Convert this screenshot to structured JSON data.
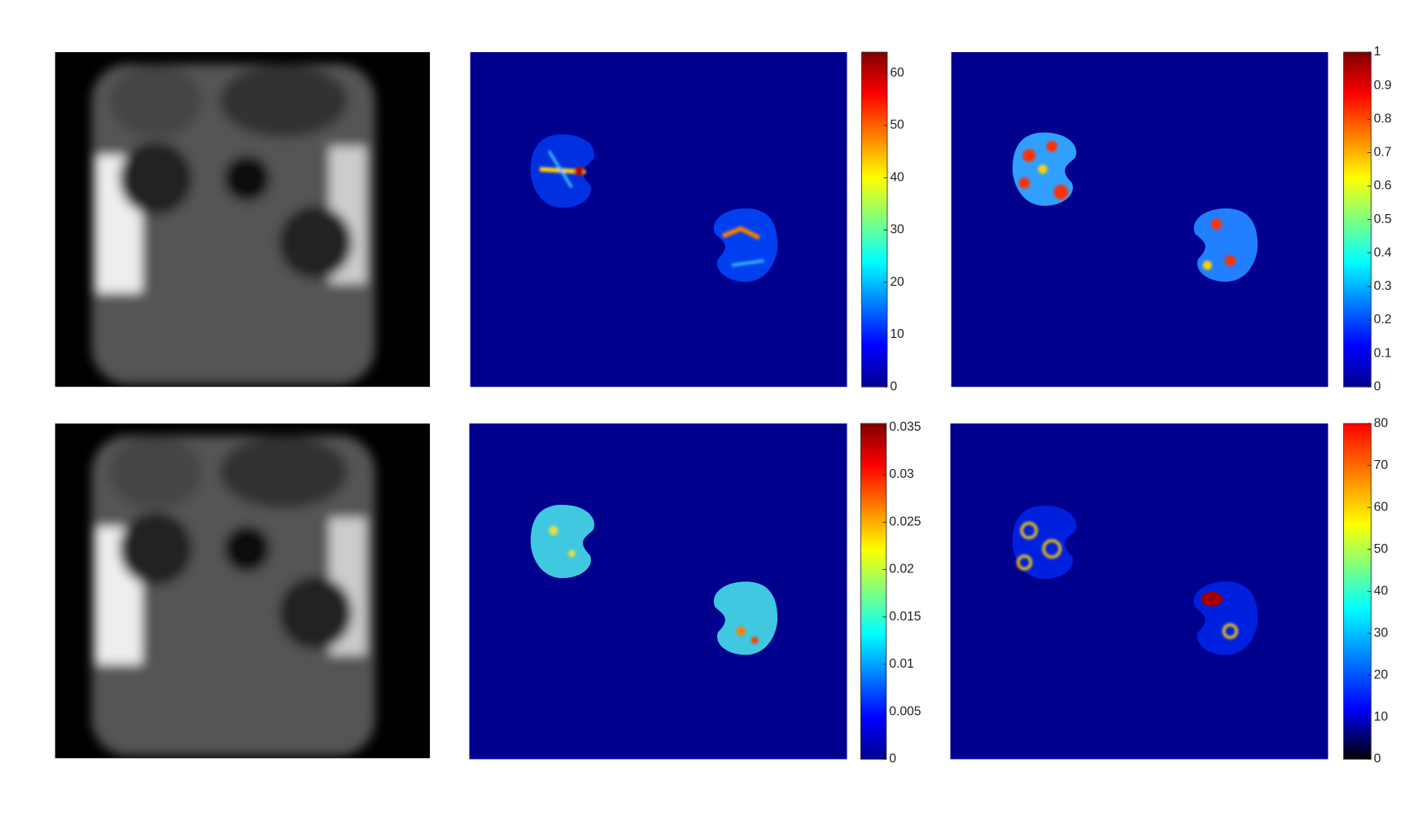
{
  "colorbars": [
    {
      "lim": [
        0,
        64
      ],
      "ticks": [
        0,
        10,
        20,
        30,
        40,
        50,
        60
      ]
    },
    {
      "lim": [
        0,
        1
      ],
      "ticks": [
        0,
        0.1,
        0.2,
        0.3,
        0.4,
        0.5,
        0.6,
        0.7,
        0.8,
        0.9,
        1
      ]
    },
    {
      "lim": [
        0,
        0.0354
      ],
      "ticks": [
        0,
        0.005,
        0.01,
        0.015,
        0.02,
        0.025,
        0.03,
        0.035
      ]
    },
    {
      "lim": [
        0,
        80
      ],
      "ticks": [
        0,
        10,
        20,
        30,
        40,
        50,
        60,
        70,
        80
      ]
    }
  ]
}
